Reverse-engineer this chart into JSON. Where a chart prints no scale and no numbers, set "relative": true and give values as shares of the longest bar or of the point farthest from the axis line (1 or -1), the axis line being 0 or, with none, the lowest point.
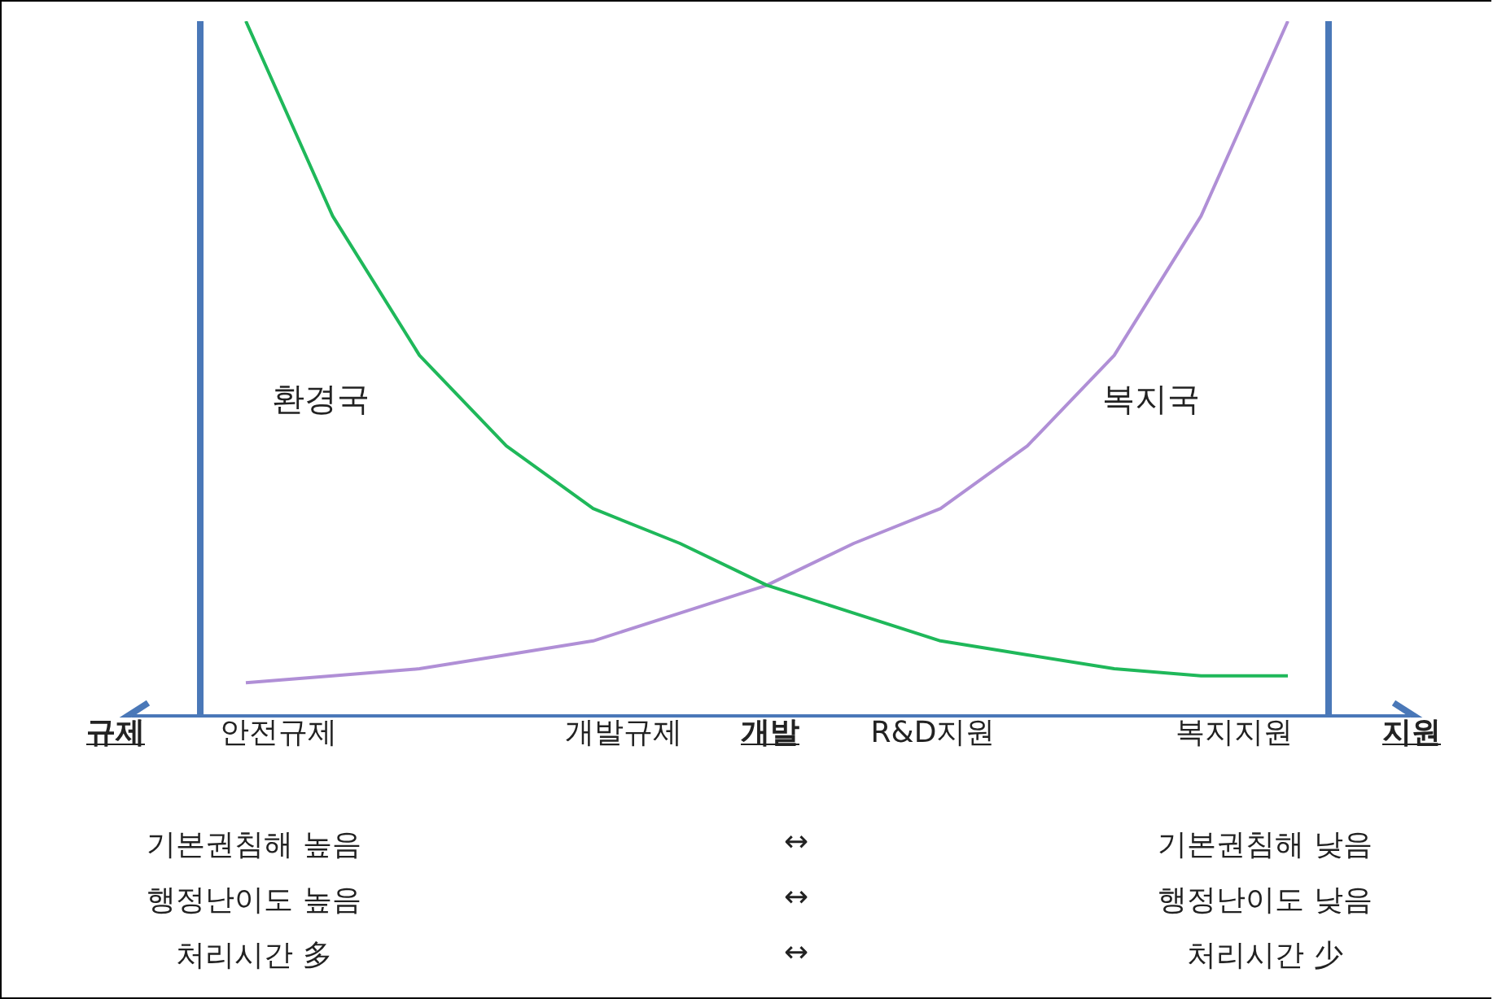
{
  "chart_data": {
    "type": "line",
    "relative": true,
    "categories": [
      null,
      null,
      null,
      null,
      null,
      null,
      null,
      null,
      null,
      null,
      null,
      null,
      null
    ],
    "series": [
      {
        "name": "환경국",
        "color": "#1fb85a",
        "values": [
          1.0,
          0.72,
          0.52,
          0.39,
          0.3,
          0.25,
          0.19,
          0.15,
          0.11,
          0.09,
          0.07,
          0.06,
          0.06
        ]
      },
      {
        "name": "복지국",
        "color": "#b08fd6",
        "values": [
          0.05,
          0.06,
          0.07,
          0.09,
          0.11,
          0.15,
          0.19,
          0.25,
          0.3,
          0.39,
          0.52,
          0.72,
          1.0
        ]
      }
    ],
    "annotations": [
      "규제",
      "안전규제",
      "개발규제",
      "개발",
      "R&D지원",
      "복지지원",
      "지원",
      "기본권침해 높음",
      "↔",
      "기본권침해 낮음",
      "행정난이도 높음",
      "↔",
      "행정난이도 낮음",
      "처리시간 多",
      "↔",
      "처리시간 少"
    ],
    "legend": false,
    "marker": "none",
    "line_style": "solid"
  }
}
